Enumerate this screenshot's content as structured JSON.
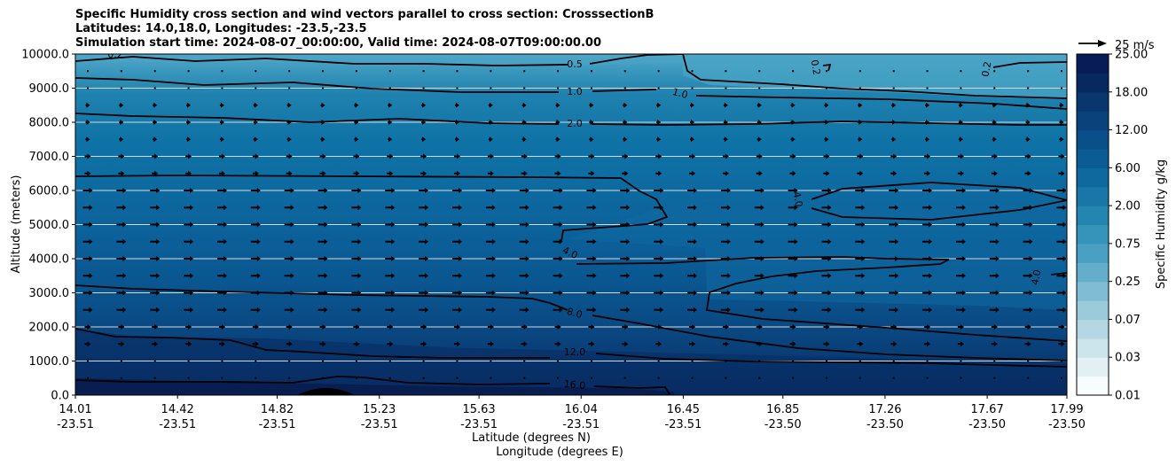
{
  "chart_data": {
    "type": "contourf",
    "title": [
      "Specific Humidity cross section and wind vectors parallel to cross section: CrosssectionB",
      "Latitudes: 14.0,18.0, Longitudes: -23.5,-23.5",
      "Simulation start time: 2024-08-07_00:00:00, Valid time: 2024-08-07T09:00:00.00"
    ],
    "xlabel_lat": "Latitude (degrees N)",
    "xlabel_lon": "Longitude (degrees E)",
    "ylabel": "Altitude (meters)",
    "ylim": [
      0,
      10000
    ],
    "y_ticks": [
      "0.0",
      "1000.0",
      "2000.0",
      "3000.0",
      "4000.0",
      "5000.0",
      "6000.0",
      "7000.0",
      "8000.0",
      "9000.0",
      "10000.0"
    ],
    "x_ticks_lat": [
      "14.01",
      "14.42",
      "14.82",
      "15.23",
      "15.63",
      "16.04",
      "16.45",
      "16.85",
      "17.26",
      "17.67",
      "17.99"
    ],
    "x_ticks_lon": [
      "-23.51",
      "-23.51",
      "-23.51",
      "-23.51",
      "-23.51",
      "-23.51",
      "-23.51",
      "-23.50",
      "-23.50",
      "-23.50",
      "-23.50"
    ],
    "colorbar": {
      "label": "Specific Humidity g/kg",
      "tick_labels": [
        "0.01",
        "0.03",
        "0.07",
        "0.25",
        "0.75",
        "2.00",
        "6.00",
        "12.00",
        "18.00",
        "25.00"
      ],
      "colors": [
        "#f7fcfd",
        "#e2f0f4",
        "#cce4ec",
        "#b4d7e3",
        "#9bcadb",
        "#80bcd3",
        "#64aecb",
        "#4aa0c2",
        "#3693ba",
        "#2585b1",
        "#1877a8",
        "#0f699f",
        "#0b5c95",
        "#0a4f8a",
        "#0a427c",
        "#09366e",
        "#08295f",
        "#081d58"
      ]
    },
    "quiver_key": "25 m/s",
    "contour_labels": [
      {
        "text": "0.5"
      },
      {
        "text": "0.2"
      },
      {
        "text": "0.2"
      },
      {
        "text": "0.2"
      },
      {
        "text": "1.0"
      },
      {
        "text": "1.0"
      },
      {
        "text": "2.0"
      },
      {
        "text": "4.0"
      },
      {
        "text": "4.0"
      },
      {
        "text": "4.0"
      },
      {
        "text": "8.0"
      },
      {
        "text": "12.0"
      },
      {
        "text": "16.0"
      }
    ],
    "contour_levels_gkg": [
      0.2,
      0.5,
      1.0,
      2.0,
      4.0,
      8.0,
      12.0,
      16.0
    ]
  }
}
